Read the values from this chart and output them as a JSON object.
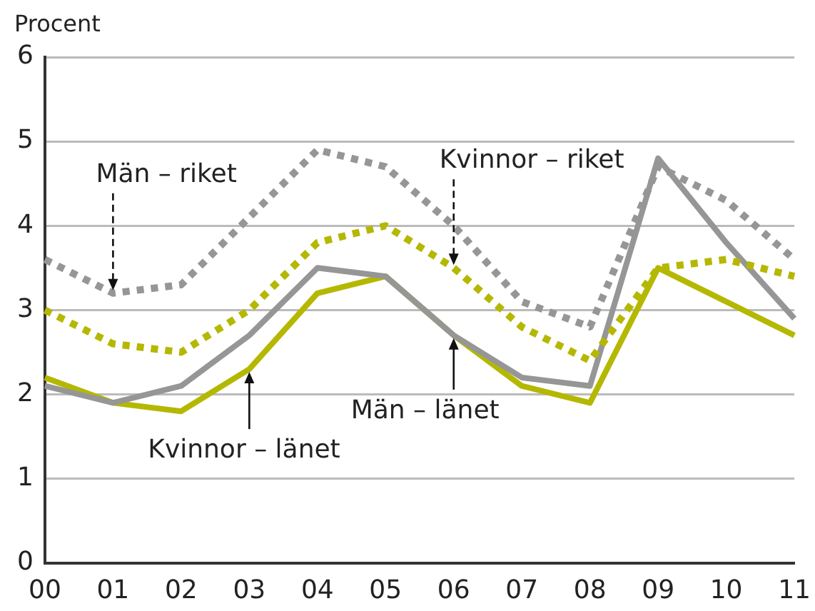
{
  "chart_data": {
    "type": "line",
    "ylabel": "Procent",
    "categories": [
      "00",
      "01",
      "02",
      "03",
      "04",
      "05",
      "06",
      "07",
      "08",
      "09",
      "10",
      "11"
    ],
    "series": [
      {
        "color": "#969696",
        "line_style": "dotted",
        "values": [
          3.6,
          3.2,
          3.3,
          4.1,
          4.9,
          4.7,
          4.0,
          3.1,
          2.8,
          4.7,
          4.3,
          3.6
        ]
      },
      {
        "color": "#b5b800",
        "line_style": "dotted",
        "values": [
          3.0,
          2.6,
          2.5,
          3.0,
          3.8,
          4.0,
          3.5,
          2.8,
          2.4,
          3.5,
          3.6,
          3.4
        ]
      },
      {
        "color": "#969696",
        "line_style": "solid",
        "values": [
          2.1,
          1.9,
          2.1,
          2.7,
          3.5,
          3.4,
          2.7,
          2.2,
          2.1,
          4.8,
          3.8,
          2.9
        ]
      },
      {
        "color": "#b5b800",
        "line_style": "solid",
        "values": [
          2.2,
          1.9,
          1.8,
          2.3,
          3.2,
          3.4,
          2.7,
          2.1,
          1.9,
          3.5,
          3.1,
          2.7
        ]
      }
    ],
    "ylim": [
      0,
      6
    ],
    "yticks": [
      0,
      1,
      2,
      3,
      4,
      5,
      6
    ],
    "grid": "y",
    "legend": false,
    "marker": "none",
    "annotations": [
      {
        "text": "Män – riket",
        "x": "01",
        "y": 3.2
      },
      {
        "text": "Kvinnor – riket",
        "x": "06",
        "y": 3.5
      },
      {
        "text": "Män – länet",
        "x": "06",
        "y": 2.7
      },
      {
        "text": "Kvinnor – länet",
        "x": "03",
        "y": 2.3
      }
    ]
  }
}
